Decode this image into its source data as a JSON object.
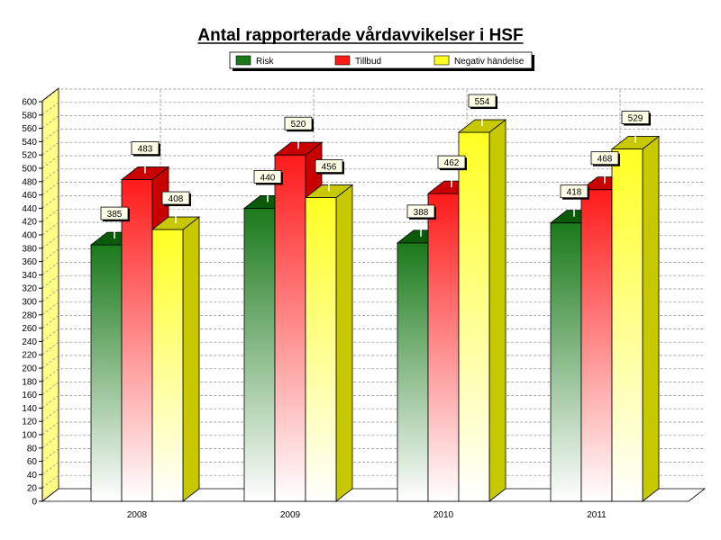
{
  "chart_data": {
    "type": "bar",
    "title": "Antal rapporterade vårdavvikelser i HSF",
    "categories": [
      "2008",
      "2009",
      "2010",
      "2011"
    ],
    "series": [
      {
        "name": "Risk",
        "values": [
          385,
          440,
          388,
          418
        ],
        "color": "#1a7a1a",
        "top_color": "#0a5a0a"
      },
      {
        "name": "Tillbud",
        "values": [
          483,
          520,
          462,
          468
        ],
        "color": "#ff1a1a",
        "top_color": "#c80000"
      },
      {
        "name": "Negativ händelse",
        "values": [
          408,
          456,
          554,
          529
        ],
        "color": "#ffff22",
        "top_color": "#c8c800"
      }
    ],
    "ylim": [
      0,
      600
    ],
    "ytick_step": 20,
    "grid": true,
    "legend_position": "top"
  }
}
